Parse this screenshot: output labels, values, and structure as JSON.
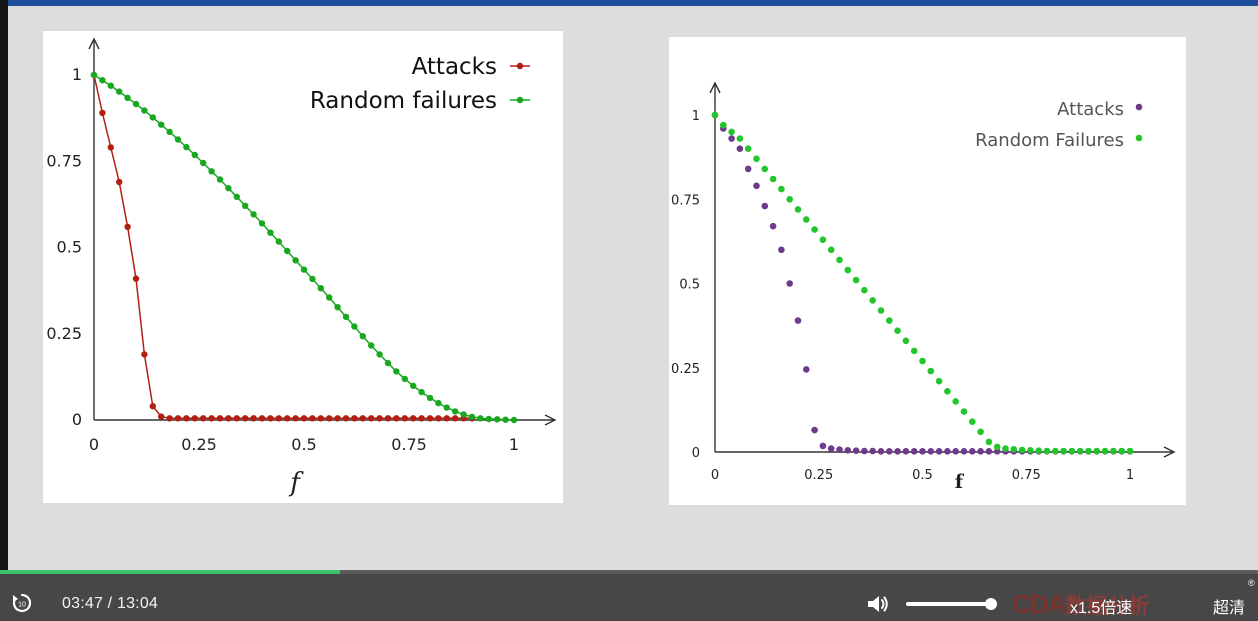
{
  "colors": {
    "accent_bar": "#1f4f9a",
    "progress": "#3fc06a",
    "attacks_left": "#b21f12",
    "random_green": "#18a820",
    "attacks_right": "#6d3a8c",
    "random_right": "#22c52a"
  },
  "chart_data": [
    {
      "type": "line",
      "xlabel": "f",
      "ylabel": "",
      "xlim": [
        0,
        1
      ],
      "ylim": [
        0,
        1
      ],
      "xticks": [
        "0",
        "0.25",
        "0.5",
        "0.75",
        "1"
      ],
      "yticks": [
        "0",
        "0.25",
        "0.5",
        "0.75",
        "1"
      ],
      "grid": false,
      "legend_position": "top-right",
      "series": [
        {
          "name": "Attacks",
          "color": "#b21f12",
          "marker": "circle",
          "line": true,
          "x": [
            0,
            0.02,
            0.04,
            0.06,
            0.08,
            0.1,
            0.12,
            0.14,
            0.16,
            0.18,
            0.2,
            0.22,
            0.24,
            0.26,
            0.28,
            0.3,
            0.32,
            0.34,
            0.36,
            0.38,
            0.4,
            0.42,
            0.44,
            0.46,
            0.48,
            0.5,
            0.52,
            0.54,
            0.56,
            0.58,
            0.6,
            0.62,
            0.64,
            0.66,
            0.68,
            0.7,
            0.72,
            0.74,
            0.76,
            0.78,
            0.8,
            0.82,
            0.84,
            0.86,
            0.88,
            0.9
          ],
          "y": [
            1,
            0.89,
            0.79,
            0.69,
            0.56,
            0.41,
            0.19,
            0.04,
            0.01,
            0.005,
            0.005,
            0.005,
            0.005,
            0.005,
            0.005,
            0.005,
            0.005,
            0.005,
            0.005,
            0.005,
            0.005,
            0.005,
            0.005,
            0.005,
            0.005,
            0.005,
            0.005,
            0.005,
            0.005,
            0.005,
            0.005,
            0.005,
            0.005,
            0.005,
            0.005,
            0.005,
            0.005,
            0.005,
            0.005,
            0.005,
            0.005,
            0.005,
            0.005,
            0.005,
            0.005,
            0.005
          ]
        },
        {
          "name": "Random failures",
          "color": "#18a820",
          "marker": "circle",
          "line": true,
          "x": [
            0,
            0.02,
            0.04,
            0.06,
            0.08,
            0.1,
            0.12,
            0.14,
            0.16,
            0.18,
            0.2,
            0.22,
            0.24,
            0.26,
            0.28,
            0.3,
            0.32,
            0.34,
            0.36,
            0.38,
            0.4,
            0.42,
            0.44,
            0.46,
            0.48,
            0.5,
            0.52,
            0.54,
            0.56,
            0.58,
            0.6,
            0.62,
            0.64,
            0.66,
            0.68,
            0.7,
            0.72,
            0.74,
            0.76,
            0.78,
            0.8,
            0.82,
            0.84,
            0.86,
            0.88,
            0.9,
            0.92,
            0.94,
            0.96,
            0.98,
            1
          ],
          "y": [
            1,
            0.985,
            0.969,
            0.952,
            0.934,
            0.916,
            0.897,
            0.877,
            0.856,
            0.835,
            0.813,
            0.791,
            0.768,
            0.745,
            0.721,
            0.697,
            0.672,
            0.647,
            0.621,
            0.596,
            0.57,
            0.543,
            0.517,
            0.49,
            0.463,
            0.436,
            0.409,
            0.382,
            0.355,
            0.327,
            0.299,
            0.271,
            0.243,
            0.216,
            0.19,
            0.165,
            0.141,
            0.119,
            0.099,
            0.081,
            0.064,
            0.049,
            0.036,
            0.025,
            0.016,
            0.009,
            0.005,
            0.003,
            0.002,
            0.001,
            0
          ]
        }
      ]
    },
    {
      "type": "scatter",
      "xlabel": "f",
      "ylabel": "",
      "xlim": [
        0,
        1
      ],
      "ylim": [
        0,
        1
      ],
      "xticks": [
        "0",
        "0.25",
        "0.5",
        "0.75",
        "1"
      ],
      "yticks": [
        "0",
        "0.25",
        "0.5",
        "0.75",
        "1"
      ],
      "grid": false,
      "legend_position": "top-right",
      "series": [
        {
          "name": "Attacks",
          "color": "#6d3a8c",
          "marker": "circle",
          "line": false,
          "x": [
            0,
            0.02,
            0.04,
            0.06,
            0.08,
            0.1,
            0.12,
            0.14,
            0.16,
            0.18,
            0.2,
            0.22,
            0.24,
            0.26,
            0.28,
            0.3,
            0.32,
            0.34,
            0.36,
            0.38,
            0.4,
            0.42,
            0.44,
            0.46,
            0.48,
            0.5,
            0.52,
            0.54,
            0.56,
            0.58,
            0.6,
            0.62,
            0.64,
            0.66,
            0.68,
            0.7,
            0.72,
            0.74,
            0.76,
            0.78,
            0.8,
            0.82,
            0.84,
            0.86,
            0.88,
            0.9,
            0.92,
            0.94,
            0.96,
            0.98,
            1
          ],
          "y": [
            1,
            0.96,
            0.93,
            0.9,
            0.84,
            0.79,
            0.73,
            0.67,
            0.6,
            0.5,
            0.39,
            0.245,
            0.065,
            0.018,
            0.01,
            0.007,
            0.005,
            0.004,
            0.003,
            0.003,
            0.002,
            0.002,
            0.002,
            0.002,
            0.002,
            0.002,
            0.002,
            0.002,
            0.002,
            0.002,
            0.002,
            0.002,
            0.002,
            0.002,
            0.002,
            0.002,
            0.002,
            0.002,
            0.002,
            0.002,
            0.002,
            0.002,
            0.002,
            0.002,
            0.002,
            0.002,
            0.002,
            0.002,
            0.002,
            0.002,
            0.002
          ]
        },
        {
          "name": "Random Failures",
          "color": "#22c52a",
          "marker": "circle",
          "line": false,
          "x": [
            0,
            0.02,
            0.04,
            0.06,
            0.08,
            0.1,
            0.12,
            0.14,
            0.16,
            0.18,
            0.2,
            0.22,
            0.24,
            0.26,
            0.28,
            0.3,
            0.32,
            0.34,
            0.36,
            0.38,
            0.4,
            0.42,
            0.44,
            0.46,
            0.48,
            0.5,
            0.52,
            0.54,
            0.56,
            0.58,
            0.6,
            0.62,
            0.64,
            0.66,
            0.68,
            0.7,
            0.72,
            0.74,
            0.76,
            0.78,
            0.8,
            0.82,
            0.84,
            0.86,
            0.88,
            0.9,
            0.92,
            0.94,
            0.96,
            0.98,
            1
          ],
          "y": [
            1,
            0.97,
            0.95,
            0.93,
            0.9,
            0.87,
            0.84,
            0.81,
            0.78,
            0.75,
            0.72,
            0.69,
            0.66,
            0.63,
            0.6,
            0.57,
            0.54,
            0.51,
            0.48,
            0.45,
            0.42,
            0.39,
            0.36,
            0.33,
            0.3,
            0.27,
            0.24,
            0.21,
            0.18,
            0.15,
            0.12,
            0.09,
            0.06,
            0.03,
            0.015,
            0.01,
            0.008,
            0.006,
            0.005,
            0.004,
            0.003,
            0.003,
            0.003,
            0.003,
            0.003,
            0.003,
            0.003,
            0.003,
            0.003,
            0.003,
            0.003
          ]
        }
      ]
    }
  ],
  "player": {
    "progress_fraction": 0.27,
    "time_display": "03:47 / 13:04",
    "volume_fraction": 0.97,
    "logo_text": "CDA",
    "logo_cn": "数据分析",
    "reg_mark": "®",
    "speed_label": "x1.5倍速",
    "quality_label": "超清",
    "icons": {
      "replay": "replay-icon",
      "volume": "volume-icon"
    }
  }
}
